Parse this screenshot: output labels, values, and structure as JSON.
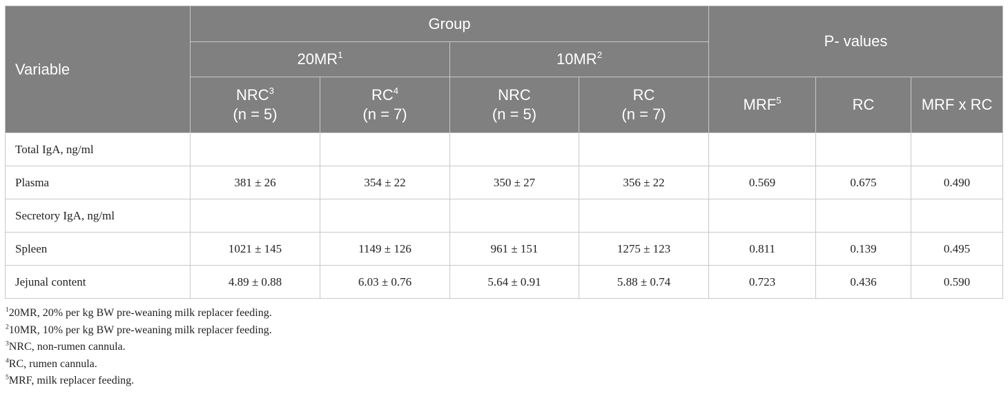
{
  "table": {
    "header": {
      "variable": "Variable",
      "group": "Group",
      "p_values": "P- values",
      "groups": [
        {
          "label": "20MR",
          "sup": "1"
        },
        {
          "label": "10MR",
          "sup": "2"
        }
      ],
      "columns": [
        {
          "label": "NRC",
          "sup": "3",
          "n": "(n = 5)"
        },
        {
          "label": "RC",
          "sup": "4",
          "n": "(n = 7)"
        },
        {
          "label": "NRC",
          "n": "(n = 5)"
        },
        {
          "label": "RC",
          "n": "(n = 7)"
        },
        {
          "label": "MRF",
          "sup": "5"
        },
        {
          "label": "RC"
        },
        {
          "label": "MRF x RC"
        }
      ]
    },
    "rows": [
      [
        "Total IgA, ng/ml"
      ],
      [
        "Plasma",
        "381 ± 26",
        "354 ± 22",
        "350 ± 27",
        "356 ± 22",
        "0.569",
        "0.675",
        "0.490"
      ],
      [
        "Secretory IgA, ng/ml"
      ],
      [
        "Spleen",
        "1021 ± 145",
        "1149 ± 126",
        "961 ± 151",
        "1275 ± 123",
        "0.811",
        "0.139",
        "0.495"
      ],
      [
        "Jejunal content",
        "4.89 ± 0.88",
        "6.03 ± 0.76",
        "5.64 ± 0.91",
        "5.88 ± 0.74",
        "0.723",
        "0.436",
        "0.590"
      ]
    ]
  },
  "footnotes": [
    {
      "sup": "1",
      "text": "20MR, 20% per kg BW pre-weaning milk replacer feeding."
    },
    {
      "sup": "2",
      "text": "10MR, 10% per kg BW pre-weaning milk replacer feeding."
    },
    {
      "sup": "3",
      "text": "NRC, non-rumen cannula."
    },
    {
      "sup": "4",
      "text": "RC, rumen cannula."
    },
    {
      "sup": "5",
      "text": "MRF, milk replacer feeding."
    }
  ]
}
